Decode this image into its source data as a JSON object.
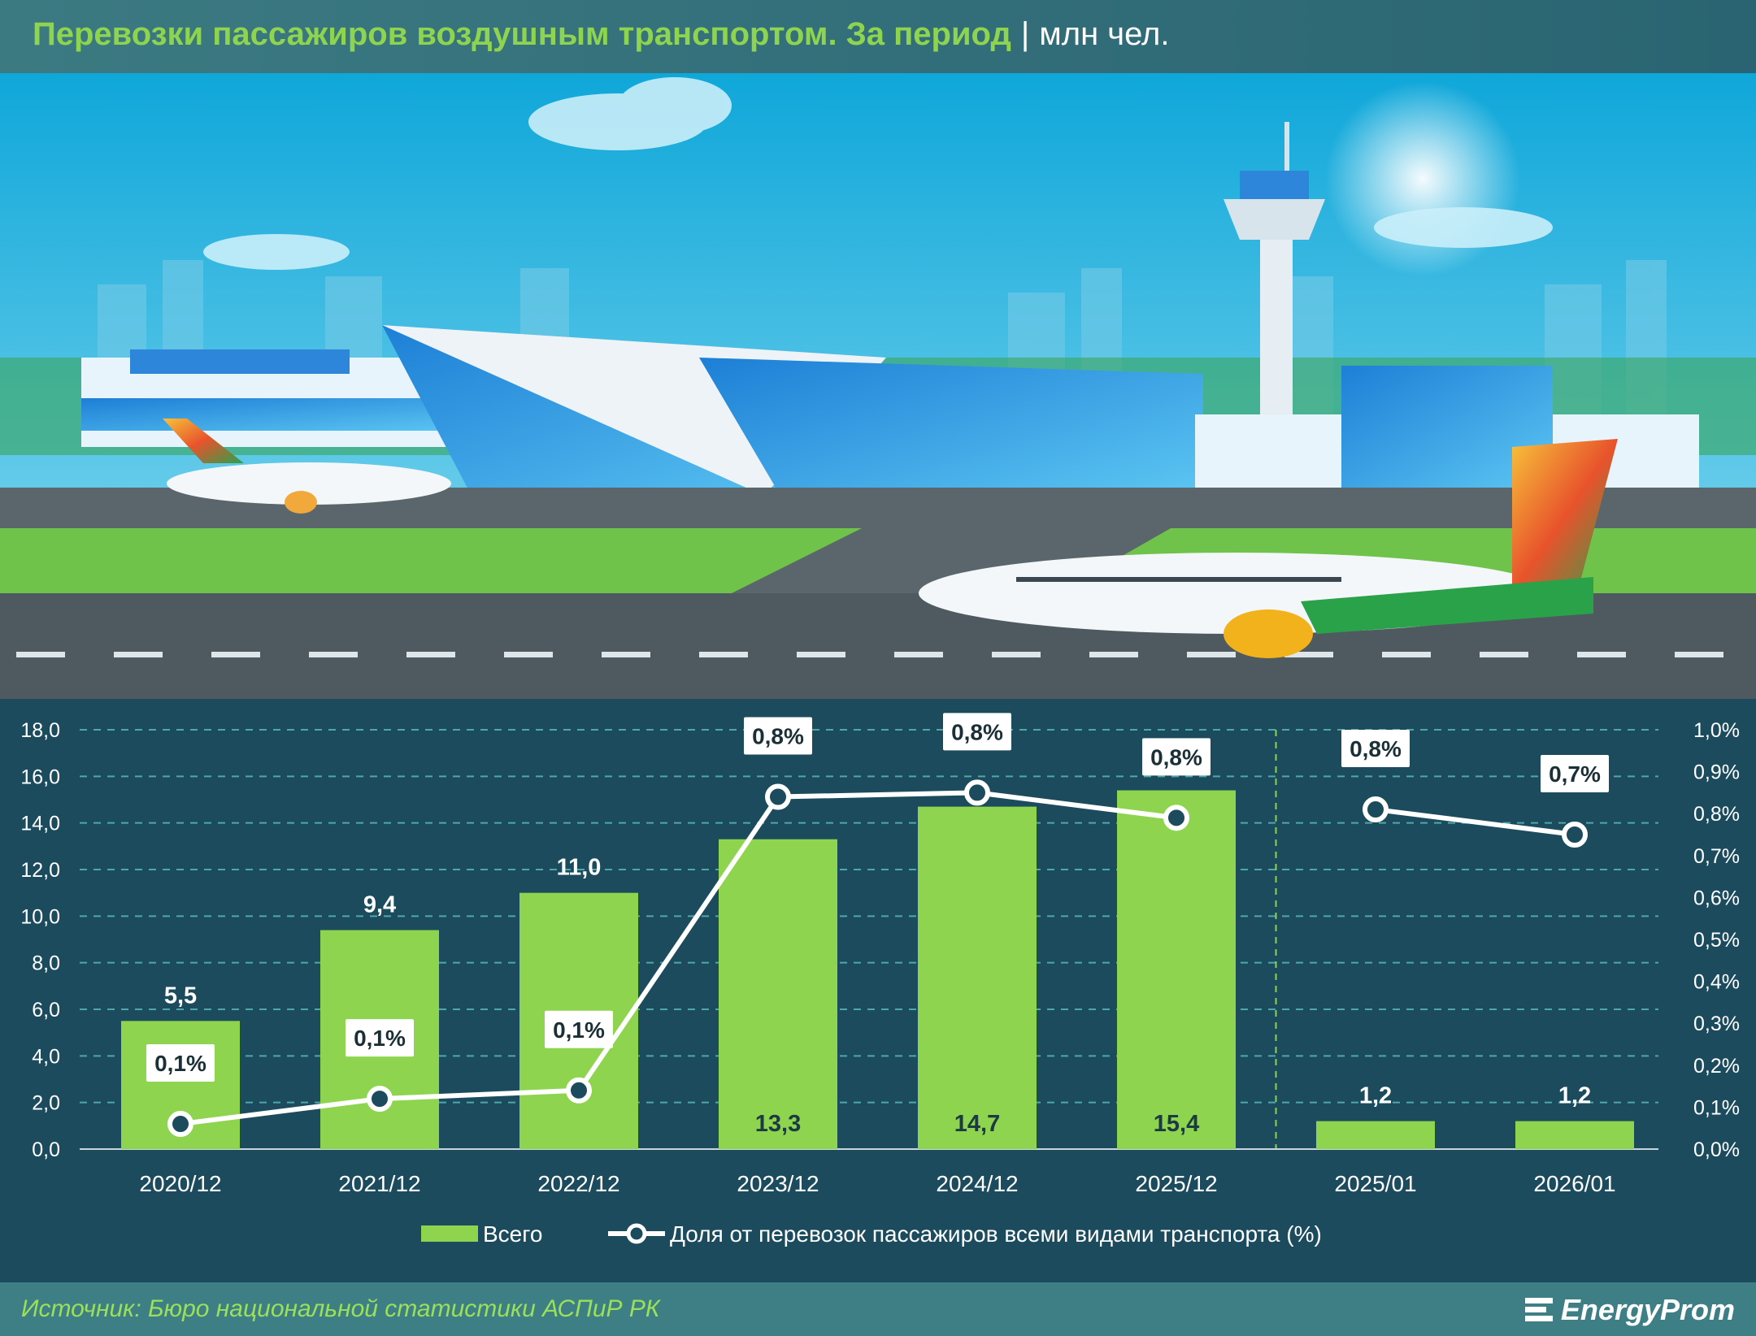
{
  "header": {
    "title": "Перевозки пассажиров воздушным транспортом. За период",
    "separator": "|",
    "unit": "млн чел."
  },
  "footer": {
    "source": "Источник: Бюро национальной статистики АСПиР РК",
    "brand": "EnergyProm"
  },
  "colors": {
    "bar": "#8ed44e",
    "line": "#ffffff",
    "grid": "#4ea8a8",
    "background": "#1b4b5d",
    "title_accent": "#8ed44e"
  },
  "chart_data": {
    "type": "bar",
    "categories": [
      "2020/12",
      "2021/12",
      "2022/12",
      "2023/12",
      "2024/12",
      "2025/12",
      "2025/01",
      "2026/01"
    ],
    "series": [
      {
        "name": "Всего",
        "type": "bar",
        "axis": "left",
        "values": [
          5.5,
          9.4,
          11.0,
          13.3,
          14.7,
          15.4,
          1.2,
          1.2
        ],
        "labels": [
          "5,5",
          "9,4",
          "11,0",
          "13,3",
          "14,7",
          "15,4",
          "1,2",
          "1,2"
        ]
      },
      {
        "name": "Доля от перевозок пассажиров всеми видами транспорта (%)",
        "type": "line",
        "axis": "right",
        "values": [
          0.06,
          0.12,
          0.14,
          0.84,
          0.85,
          0.79,
          0.81,
          0.75
        ],
        "labels": [
          "0,1%",
          "0,1%",
          "0,1%",
          "0,8%",
          "0,8%",
          "0,8%",
          "0,8%",
          "0,7%"
        ],
        "segments": [
          [
            0,
            5
          ],
          [
            6,
            7
          ]
        ]
      }
    ],
    "ylim": [
      0,
      18
    ],
    "yticks": [
      "0,0",
      "2,0",
      "4,0",
      "6,0",
      "8,0",
      "10,0",
      "12,0",
      "14,0",
      "16,0",
      "18,0"
    ],
    "y2lim": [
      0,
      1.0
    ],
    "y2ticks": [
      "0,0%",
      "0,1%",
      "0,2%",
      "0,3%",
      "0,4%",
      "0,5%",
      "0,6%",
      "0,7%",
      "0,8%",
      "0,9%",
      "1,0%"
    ],
    "grid": true,
    "divider_after_index": 5,
    "legend_position": "bottom-center"
  }
}
